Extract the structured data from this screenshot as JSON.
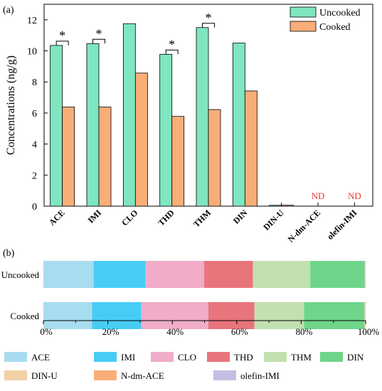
{
  "panel_a": {
    "label": "(a)",
    "chart_data": {
      "type": "bar",
      "categories": [
        "ACE",
        "IMI",
        "CLO",
        "THD",
        "THM",
        "DIN",
        "DIN-U",
        "N-dm-ACE",
        "olefin-IMI"
      ],
      "series": [
        {
          "name": "Uncooked",
          "color": "#7fe6c0",
          "values": [
            10.35,
            10.47,
            11.75,
            9.78,
            11.5,
            10.5,
            0.04,
            0,
            0
          ]
        },
        {
          "name": "Cooked",
          "color": "#f9ad79",
          "values": [
            6.38,
            6.38,
            8.57,
            5.78,
            6.22,
            7.42,
            0.06,
            0,
            0
          ]
        }
      ],
      "ylabel": "Concentrations (ng/g)",
      "ylim": [
        0,
        13
      ],
      "yticks": [
        0,
        2,
        4,
        6,
        8,
        10,
        12
      ],
      "significance": {
        "marker": "*",
        "categories": [
          "ACE",
          "IMI",
          "THD",
          "THM"
        ]
      },
      "not_detected": {
        "label": "ND",
        "color": "#e8392f",
        "categories": [
          "N-dm-ACE",
          "olefin-IMI"
        ]
      },
      "legend_position": "top-right"
    }
  },
  "panel_b": {
    "label": "(b)",
    "chart_data": {
      "type": "bar",
      "stacked_percent": true,
      "orientation": "horizontal",
      "rows": [
        "Uncooked",
        "Cooked"
      ],
      "components": [
        {
          "name": "ACE",
          "color": "#a8dcf0",
          "values": [
            15.6,
            15.1
          ]
        },
        {
          "name": "IMI",
          "color": "#47cdf5",
          "values": [
            16.1,
            15.3
          ]
        },
        {
          "name": "CLO",
          "color": "#f0acc8",
          "values": [
            18.2,
            20.8
          ]
        },
        {
          "name": "THD",
          "color": "#e8747c",
          "values": [
            15.1,
            14.3
          ]
        },
        {
          "name": "THM",
          "color": "#c3e0b0",
          "values": [
            17.8,
            15.4
          ]
        },
        {
          "name": "DIN",
          "color": "#6ed58a",
          "values": [
            16.9,
            18.7
          ]
        },
        {
          "name": "DIN-U",
          "color": "#f0d1a5",
          "values": [
            0.1,
            0.2
          ]
        },
        {
          "name": "N-dm-ACE",
          "color": "#f9ad79",
          "values": [
            0.05,
            0.05
          ]
        },
        {
          "name": "olefin-IMI",
          "color": "#c4bfe2",
          "values": [
            0.15,
            0.15
          ]
        }
      ],
      "xticks": [
        "0%",
        "20%",
        "40%",
        "60%",
        "80%",
        "100%"
      ],
      "legend_position": "bottom"
    }
  }
}
